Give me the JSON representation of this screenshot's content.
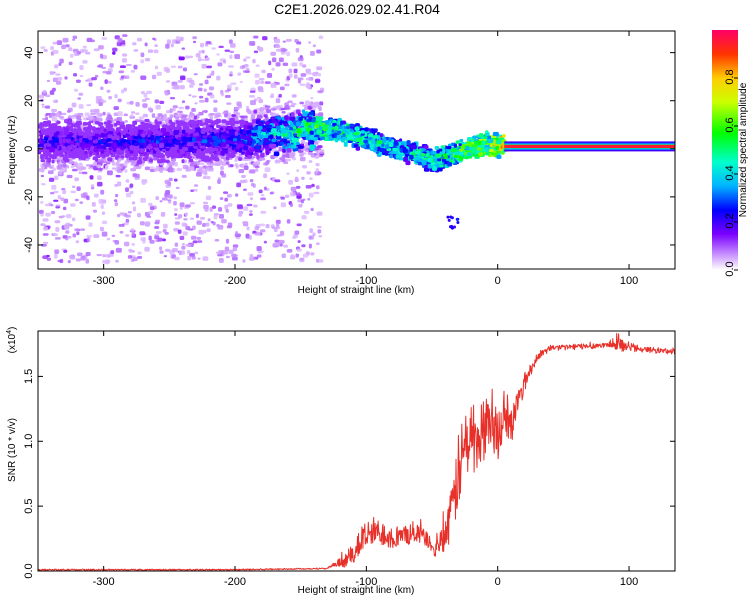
{
  "title": "C2E1.2026.029.02.41.R04",
  "colors": {
    "snr_line": "#e8302a",
    "axis": "#000000"
  },
  "chart_data": [
    {
      "type": "heatmap",
      "xlabel": "Height of straight line (km)",
      "ylabel": "Frequency (Hz)",
      "xlim": [
        -350,
        135
      ],
      "ylim": [
        -50,
        49
      ],
      "xticks": [
        -300,
        -200,
        -100,
        0,
        100
      ],
      "yticks": [
        -40,
        -20,
        0,
        20,
        40
      ],
      "x_tick_labels": [
        "-300",
        "-200",
        "-100",
        "0",
        "100"
      ],
      "y_tick_labels": [
        "-40",
        "-20",
        "0",
        "20",
        "40"
      ],
      "colorscale": "rainbow (violet to red)",
      "colorbar": {
        "label": "Normalized spectral amplitude",
        "range": [
          0,
          1
        ],
        "ticks": [
          0.0,
          0.2,
          0.4,
          0.6,
          0.8
        ],
        "tick_labels": [
          "0.0",
          "0.2",
          "0.4",
          "0.6",
          "0.8"
        ]
      },
      "ridge": {
        "x": [
          -350,
          -300,
          -250,
          -200,
          -160,
          -140,
          -120,
          -100,
          -80,
          -60,
          -50,
          -40,
          -30,
          -20,
          -10,
          0,
          5,
          135
        ],
        "freq": [
          3,
          3,
          3,
          4,
          7,
          9,
          7,
          4,
          0,
          -3,
          -5,
          -3,
          -1,
          1,
          2,
          1,
          1,
          1
        ],
        "amplitude": [
          0.25,
          0.25,
          0.28,
          0.3,
          0.5,
          0.6,
          0.55,
          0.5,
          0.45,
          0.5,
          0.5,
          0.55,
          0.6,
          0.65,
          0.7,
          0.8,
          0.9,
          1.0
        ]
      },
      "noise_extent_x": [
        -350,
        -135
      ],
      "outlier": {
        "x": -35,
        "freq": -31
      }
    },
    {
      "type": "line",
      "xlabel": "Height of straight line (km)",
      "ylabel": "SNR (10 * v/v)",
      "y_scale_label": "(x10",
      "y_scale_exponent": "4",
      "y_scale_suffix": ")",
      "xlim": [
        -350,
        135
      ],
      "ylim": [
        0,
        1.85
      ],
      "xticks": [
        -300,
        -200,
        -100,
        0,
        100
      ],
      "yticks": [
        0.0,
        0.5,
        1.0,
        1.5
      ],
      "x_tick_labels": [
        "-300",
        "-200",
        "-100",
        "0",
        "100"
      ],
      "y_tick_labels": [
        "0.0",
        "0.5",
        "1.0",
        "1.5"
      ],
      "x": [
        -350,
        -200,
        -130,
        -115,
        -105,
        -95,
        -85,
        -75,
        -65,
        -55,
        -48,
        -40,
        -35,
        -30,
        -25,
        -20,
        -15,
        -10,
        -5,
        0,
        5,
        10,
        15,
        20,
        25,
        30,
        40,
        60,
        80,
        90,
        100,
        110,
        135
      ],
      "snr": [
        0.01,
        0.01,
        0.02,
        0.08,
        0.22,
        0.3,
        0.28,
        0.25,
        0.3,
        0.26,
        0.15,
        0.28,
        0.45,
        0.75,
        0.95,
        1.05,
        1.0,
        1.1,
        1.15,
        1.05,
        1.2,
        1.1,
        1.3,
        1.45,
        1.55,
        1.65,
        1.72,
        1.73,
        1.74,
        1.75,
        1.73,
        1.71,
        1.69
      ],
      "noise_amplitude": [
        0,
        0,
        0,
        0.06,
        0.12,
        0.12,
        0.1,
        0.08,
        0.08,
        0.06,
        0.05,
        0.12,
        0.2,
        0.3,
        0.3,
        0.3,
        0.25,
        0.25,
        0.2,
        0.2,
        0.15,
        0.15,
        0.1,
        0.08,
        0.05,
        0.03,
        0.02,
        0.02,
        0.02,
        0.06,
        0.04,
        0.02,
        0.02
      ]
    }
  ]
}
